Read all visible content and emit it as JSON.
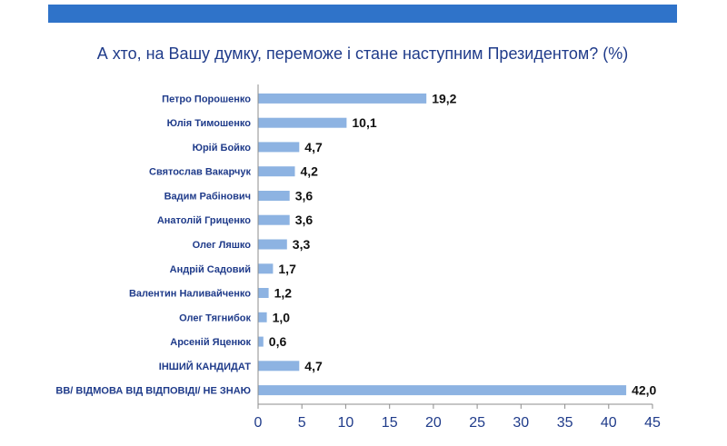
{
  "chart_data": {
    "type": "bar",
    "orientation": "horizontal",
    "title": "А хто, на Вашу думку, переможе і стане наступним Президентом? (%)",
    "categories": [
      "Петро Порошенко",
      "Юлія Тимошенко",
      "Юрій Бойко",
      "Святослав Вакарчук",
      "Вадим Рабінович",
      "Анатолій Гриценко",
      "Олег Ляшко",
      "Андрій Садовий",
      "Валентин Наливайченко",
      "Олег Тягнибок",
      "Арсеній Яценюк",
      "ІНШИЙ КАНДИДАТ",
      "ВВ/ ВІДМОВА ВІД ВІДПОВІДІ/ НЕ ЗНАЮ"
    ],
    "values": [
      19.2,
      10.1,
      4.7,
      4.2,
      3.6,
      3.6,
      3.3,
      1.7,
      1.2,
      1.0,
      0.6,
      4.7,
      42.0
    ],
    "value_labels": [
      "19,2",
      "10,1",
      "4,7",
      "4,2",
      "3,6",
      "3,6",
      "3,3",
      "1,7",
      "1,2",
      "1,0",
      "0,6",
      "4,7",
      "42,0"
    ],
    "xlim": [
      0,
      45
    ],
    "xticks": [
      0,
      5,
      10,
      15,
      20,
      25,
      30,
      35,
      40,
      45
    ],
    "xlabel": "",
    "ylabel": "",
    "grid": false,
    "legend": "none",
    "bar_color": "#8db3e2",
    "axis_color": "#8c8c8c",
    "text_color": "#1f3b8a",
    "band_color": "#2f73c9"
  }
}
